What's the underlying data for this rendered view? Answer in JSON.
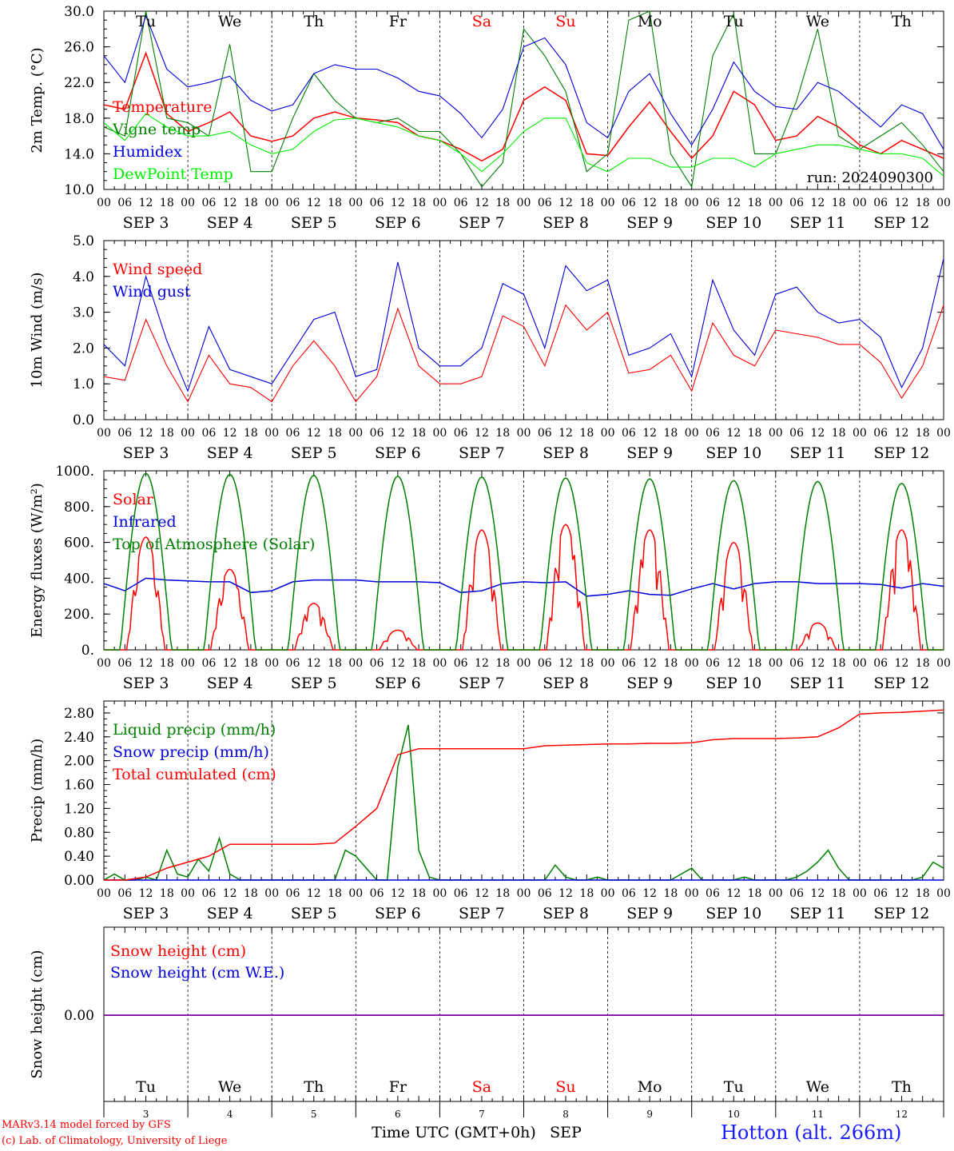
{
  "chart_data": [
    {
      "type": "line",
      "ylabel": "2m Temp. (°C)",
      "ylim": [
        10,
        30
      ],
      "yticks": [
        "10.0",
        "14.0",
        "18.0",
        "22.0",
        "26.0",
        "30.0"
      ],
      "ytick_values": [
        10,
        14,
        18,
        22,
        26,
        30
      ],
      "series": [
        {
          "name": "Temperature",
          "color": "#ff0000",
          "x": [
            0,
            6,
            12,
            18,
            24,
            30,
            36,
            42,
            48,
            54,
            60,
            66,
            72,
            78,
            84,
            90,
            96,
            102,
            108,
            114,
            120,
            126,
            132,
            138,
            144,
            150,
            156,
            162,
            168,
            174,
            180,
            186,
            192,
            198,
            204,
            210,
            216,
            222,
            228,
            234,
            240
          ],
          "values": [
            19.5,
            19,
            25.3,
            18.5,
            16.5,
            17.5,
            18.7,
            16,
            15.4,
            16,
            18,
            18.7,
            18,
            17.8,
            17.5,
            16,
            15.5,
            14.5,
            13.2,
            14.5,
            20,
            21.5,
            20,
            14,
            13.8,
            17,
            19.8,
            16.5,
            13.5,
            16,
            21,
            19.5,
            15.5,
            16,
            18.2,
            17,
            15,
            14,
            15.5,
            14.5,
            13.5
          ]
        },
        {
          "name": "Vigne temp",
          "color": "#008000",
          "x": [
            0,
            6,
            12,
            18,
            24,
            30,
            36,
            42,
            48,
            54,
            60,
            66,
            72,
            78,
            84,
            90,
            96,
            102,
            108,
            114,
            120,
            126,
            132,
            138,
            144,
            150,
            156,
            162,
            168,
            174,
            180,
            186,
            192,
            198,
            204,
            210,
            216,
            222,
            228,
            234,
            240
          ],
          "values": [
            17,
            16,
            30,
            18,
            17.5,
            16,
            26.3,
            12,
            12,
            18,
            23,
            20,
            18,
            17.5,
            18,
            16.5,
            16.5,
            14,
            10.3,
            13,
            28,
            25,
            21,
            12,
            14,
            29,
            30,
            14,
            10.3,
            25,
            29.7,
            14,
            14,
            20,
            28,
            16,
            14.5,
            16,
            17.5,
            15,
            12
          ]
        },
        {
          "name": "Humidex",
          "color": "#0000dd",
          "x": [
            0,
            6,
            12,
            18,
            24,
            30,
            36,
            42,
            48,
            54,
            60,
            66,
            72,
            78,
            84,
            90,
            96,
            102,
            108,
            114,
            120,
            126,
            132,
            138,
            144,
            150,
            156,
            162,
            168,
            174,
            180,
            186,
            192,
            198,
            204,
            210,
            216,
            222,
            228,
            234,
            240
          ],
          "values": [
            25,
            22,
            29.5,
            23.5,
            21.5,
            22,
            22.7,
            20,
            18.8,
            19.5,
            23,
            24,
            23.5,
            23.5,
            22.5,
            21,
            20.5,
            18.5,
            15.8,
            19,
            26,
            27,
            24,
            17.5,
            15.8,
            21,
            23,
            18.5,
            15,
            19,
            24.3,
            21,
            19.3,
            19,
            22,
            21,
            19,
            17,
            19.5,
            18.5,
            14.5
          ]
        },
        {
          "name": "DewPoint Temp",
          "color": "#00ee00",
          "x": [
            0,
            6,
            12,
            18,
            24,
            30,
            36,
            42,
            48,
            54,
            60,
            66,
            72,
            78,
            84,
            90,
            96,
            102,
            108,
            114,
            120,
            126,
            132,
            138,
            144,
            150,
            156,
            162,
            168,
            174,
            180,
            186,
            192,
            198,
            204,
            210,
            216,
            222,
            228,
            234,
            240
          ],
          "values": [
            17.5,
            15.5,
            18.5,
            17,
            16,
            16,
            16.5,
            15,
            14,
            14.5,
            16.5,
            17.8,
            18,
            17.5,
            17,
            16,
            15.5,
            14,
            12,
            14,
            16.5,
            18,
            18,
            13,
            12,
            13.5,
            13.5,
            12.5,
            12.5,
            13.5,
            13.5,
            12.5,
            14,
            14.5,
            15,
            15,
            14.5,
            14,
            14,
            13.5,
            11.5
          ]
        }
      ],
      "annotations": [
        "run: 2024090300"
      ]
    },
    {
      "type": "line",
      "ylabel": "10m Wind (m/s)",
      "ylim": [
        0,
        5
      ],
      "yticks": [
        "0.0",
        "1.0",
        "2.0",
        "3.0",
        "4.0",
        "5.0"
      ],
      "ytick_values": [
        0,
        1,
        2,
        3,
        4,
        5
      ],
      "series": [
        {
          "name": "Wind speed",
          "color": "#ff0000",
          "x": [
            0,
            6,
            12,
            18,
            24,
            30,
            36,
            42,
            48,
            54,
            60,
            66,
            72,
            78,
            84,
            90,
            96,
            102,
            108,
            114,
            120,
            126,
            132,
            138,
            144,
            150,
            156,
            162,
            168,
            174,
            180,
            186,
            192,
            198,
            204,
            210,
            216,
            222,
            228,
            234,
            240
          ],
          "values": [
            1.2,
            1.1,
            2.8,
            1.5,
            0.5,
            1.8,
            1,
            0.9,
            0.5,
            1.5,
            2.2,
            1.5,
            0.5,
            1.2,
            3.1,
            1.5,
            1,
            1,
            1.2,
            2.9,
            2.6,
            1.5,
            3.2,
            2.5,
            3,
            1.3,
            1.4,
            1.8,
            0.8,
            2.7,
            1.8,
            1.5,
            2.5,
            2.4,
            2.3,
            2.1,
            2.1,
            1.6,
            0.6,
            1.5,
            3.2
          ]
        },
        {
          "name": "Wind gust",
          "color": "#0000dd",
          "x": [
            0,
            6,
            12,
            18,
            24,
            30,
            36,
            42,
            48,
            54,
            60,
            66,
            72,
            78,
            84,
            90,
            96,
            102,
            108,
            114,
            120,
            126,
            132,
            138,
            144,
            150,
            156,
            162,
            168,
            174,
            180,
            186,
            192,
            198,
            204,
            210,
            216,
            222,
            228,
            234,
            240
          ],
          "values": [
            2.1,
            1.5,
            4,
            2.2,
            0.8,
            2.6,
            1.4,
            1.2,
            1,
            1.9,
            2.8,
            3,
            1.2,
            1.4,
            4.4,
            2,
            1.5,
            1.5,
            2,
            3.8,
            3.5,
            2,
            4.3,
            3.6,
            3.9,
            1.8,
            2,
            2.4,
            1.2,
            3.9,
            2.5,
            1.8,
            3.5,
            3.7,
            3,
            2.7,
            2.8,
            2.3,
            0.9,
            2,
            4.5
          ]
        }
      ]
    },
    {
      "type": "line",
      "ylabel": "Energy fluxes (W/m²)",
      "ylim": [
        0,
        1000
      ],
      "yticks": [
        "0.",
        "200.",
        "400.",
        "600.",
        "800.",
        "1000."
      ],
      "ytick_values": [
        0,
        200,
        400,
        600,
        800,
        1000
      ],
      "series": [
        {
          "name": "Solar",
          "color": "#ff0000",
          "peaks": [
            630,
            450,
            260,
            110,
            670,
            700,
            670,
            600,
            150,
            670
          ]
        },
        {
          "name": "Infrared",
          "color": "#0000dd",
          "x": [
            0,
            6,
            12,
            18,
            24,
            30,
            36,
            42,
            48,
            54,
            60,
            66,
            72,
            78,
            84,
            90,
            96,
            102,
            108,
            114,
            120,
            126,
            132,
            138,
            144,
            150,
            156,
            162,
            168,
            174,
            180,
            186,
            192,
            198,
            204,
            210,
            216,
            222,
            228,
            234,
            240
          ],
          "values": [
            370,
            330,
            400,
            390,
            385,
            380,
            380,
            320,
            330,
            380,
            390,
            390,
            390,
            380,
            380,
            380,
            375,
            320,
            330,
            370,
            380,
            375,
            380,
            300,
            310,
            330,
            310,
            305,
            340,
            370,
            340,
            370,
            380,
            380,
            370,
            370,
            370,
            365,
            345,
            370,
            355
          ]
        },
        {
          "name": "Top of Atmosphere (Solar)",
          "color": "#008000",
          "peaks": [
            985,
            980,
            975,
            970,
            965,
            960,
            955,
            945,
            940,
            930
          ]
        }
      ]
    },
    {
      "type": "line",
      "ylabel": "Precip (mm/h)",
      "ylim": [
        0,
        3.0
      ],
      "yticks": [
        "0.00",
        "0.40",
        "0.80",
        "1.20",
        "1.60",
        "2.00",
        "2.40",
        "2.80"
      ],
      "ytick_values": [
        0,
        0.4,
        0.8,
        1.2,
        1.6,
        2.0,
        2.4,
        2.8
      ],
      "series": [
        {
          "name": "Liquid precip (mm/h)",
          "color": "#008000",
          "x": [
            0,
            3,
            6,
            9,
            12,
            15,
            18,
            21,
            24,
            27,
            30,
            33,
            36,
            39,
            42,
            45,
            48,
            51,
            54,
            57,
            60,
            63,
            66,
            69,
            72,
            75,
            78,
            81,
            84,
            87,
            90,
            93,
            96,
            99,
            102,
            105,
            108,
            111,
            114,
            117,
            120,
            123,
            126,
            129,
            132,
            135,
            138,
            141,
            144,
            147,
            150,
            153,
            156,
            159,
            162,
            165,
            168,
            171,
            174,
            177,
            180,
            183,
            186,
            189,
            192,
            195,
            198,
            201,
            204,
            207,
            210,
            213,
            216,
            219,
            222,
            225,
            228,
            231,
            234,
            237,
            240
          ],
          "values": [
            0,
            0.1,
            0,
            0,
            0.05,
            0,
            0.5,
            0.1,
            0.05,
            0.35,
            0.15,
            0.7,
            0.1,
            0,
            0,
            0,
            0,
            0,
            0,
            0,
            0,
            0,
            0,
            0.5,
            0.4,
            0.2,
            0,
            0,
            1.9,
            2.6,
            0.5,
            0.05,
            0,
            0,
            0,
            0,
            0,
            0,
            0,
            0,
            0,
            0,
            0,
            0.25,
            0.05,
            0,
            0,
            0.05,
            0,
            0,
            0,
            0,
            0,
            0,
            0,
            0.1,
            0.2,
            0,
            0,
            0,
            0,
            0.05,
            0,
            0,
            0,
            0,
            0.05,
            0.15,
            0.3,
            0.5,
            0.2,
            0,
            0,
            0,
            0,
            0,
            0,
            0,
            0.05,
            0.3,
            0.2
          ]
        },
        {
          "name": "Snow precip (mm/h)",
          "color": "#0000dd",
          "x": [
            0,
            240
          ],
          "values": [
            0,
            0
          ]
        },
        {
          "name": "Total cumulated (cm)",
          "color": "#ff0000",
          "x": [
            0,
            6,
            12,
            18,
            24,
            30,
            36,
            42,
            48,
            54,
            60,
            66,
            72,
            78,
            84,
            90,
            96,
            102,
            108,
            114,
            120,
            126,
            132,
            138,
            144,
            150,
            156,
            162,
            168,
            174,
            180,
            186,
            192,
            198,
            204,
            210,
            216,
            222,
            228,
            234,
            240
          ],
          "values": [
            0,
            0,
            0.05,
            0.2,
            0.3,
            0.4,
            0.6,
            0.6,
            0.6,
            0.6,
            0.6,
            0.62,
            0.9,
            1.2,
            2.1,
            2.2,
            2.2,
            2.2,
            2.2,
            2.2,
            2.2,
            2.25,
            2.26,
            2.27,
            2.28,
            2.28,
            2.29,
            2.29,
            2.3,
            2.35,
            2.37,
            2.37,
            2.37,
            2.38,
            2.4,
            2.55,
            2.78,
            2.8,
            2.81,
            2.83,
            2.85
          ]
        }
      ]
    },
    {
      "type": "line",
      "ylabel": "Snow height (cm)",
      "yticks": [
        "0.00"
      ],
      "series": [
        {
          "name": "Snow height (cm)",
          "color": "#ff0000",
          "x": [
            0,
            240
          ],
          "values": [
            0,
            0
          ]
        },
        {
          "name": "Snow height (cm W.E.)",
          "color": "#0000dd",
          "x": [
            0,
            240
          ],
          "values": [
            0,
            0
          ]
        }
      ]
    }
  ],
  "x_axis": {
    "hour_ticks": [
      "00",
      "06",
      "12",
      "18"
    ],
    "end_tick": "00",
    "dates": [
      "SEP  3",
      "SEP  4",
      "SEP  5",
      "SEP  6",
      "SEP  7",
      "SEP  8",
      "SEP  9",
      "SEP 10",
      "SEP 11",
      "SEP 12"
    ],
    "weekdays": [
      "Tu",
      "We",
      "Th",
      "Fr",
      "Sa",
      "Su",
      "Mo",
      "Tu",
      "We",
      "Th"
    ],
    "weekend_color": "#ff0000",
    "day_numbers": [
      "3",
      "4",
      "5",
      "6",
      "7",
      "8",
      "9",
      "10",
      "11",
      "12"
    ],
    "xlabel": "Time UTC (GMT+0h)",
    "month": "SEP"
  },
  "footer": {
    "model_line": "MARv3.14 model forced by GFS",
    "lab_line": "(c) Lab. of Climatology, University of Liege",
    "station": "Hotton (alt. 266m)"
  }
}
